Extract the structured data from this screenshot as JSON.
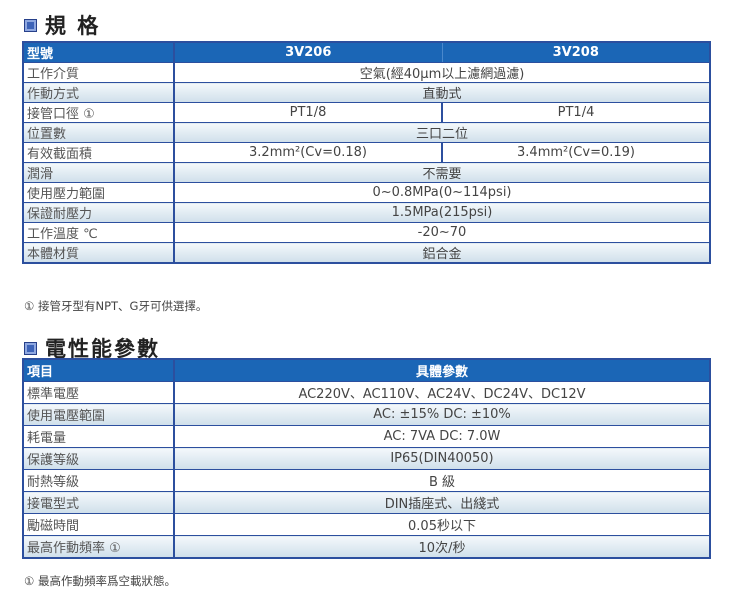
{
  "spec": {
    "title": "規 格",
    "header": {
      "label": "型號",
      "models": [
        "3V206",
        "3V208"
      ]
    },
    "rows": [
      {
        "label": "工作介質",
        "value": "空氣(經40μm以上濾網過濾)"
      },
      {
        "label": "作動方式",
        "value": "直動式"
      },
      {
        "label": "接管口徑 ①",
        "values": [
          "PT1/8",
          "PT1/4"
        ]
      },
      {
        "label": "位置數",
        "value": "三口二位"
      },
      {
        "label": "有效截面積",
        "values": [
          "3.2mm²(Cv=0.18)",
          "3.4mm²(Cv=0.19)"
        ]
      },
      {
        "label": "潤滑",
        "value": "不需要"
      },
      {
        "label": "使用壓力範圍",
        "value": "0~0.8MPa(0~114psi)"
      },
      {
        "label": "保證耐壓力",
        "value": "1.5MPa(215psi)"
      },
      {
        "label": "工作溫度 ℃",
        "value": "-20~70"
      },
      {
        "label": "本體材質",
        "value": "鋁合金"
      }
    ],
    "note": "① 接管牙型有NPT、G牙可供選擇。"
  },
  "electrical": {
    "title": "電性能參數",
    "header": {
      "label": "項目",
      "value": "具體參數"
    },
    "rows": [
      {
        "label": "標準電壓",
        "value": "AC220V、AC110V、AC24V、DC24V、DC12V"
      },
      {
        "label": "使用電壓範圍",
        "value": "AC: ±15%    DC: ±10%"
      },
      {
        "label": "耗電量",
        "value": "AC: 7VA    DC: 7.0W"
      },
      {
        "label": "保護等級",
        "value": "IP65(DIN40050)"
      },
      {
        "label": "耐熱等級",
        "value": "B 級"
      },
      {
        "label": "接電型式",
        "value": "DIN插座式、出綫式"
      },
      {
        "label": "勵磁時間",
        "value": "0.05秒以下"
      },
      {
        "label": "最高作動頻率 ①",
        "value": "10次/秒"
      }
    ],
    "note": "① 最高作動頻率爲空載狀態。"
  },
  "colors": {
    "header": "#1b66b6",
    "border": "#2c4f9e",
    "alt_row": "#cfdfea"
  }
}
